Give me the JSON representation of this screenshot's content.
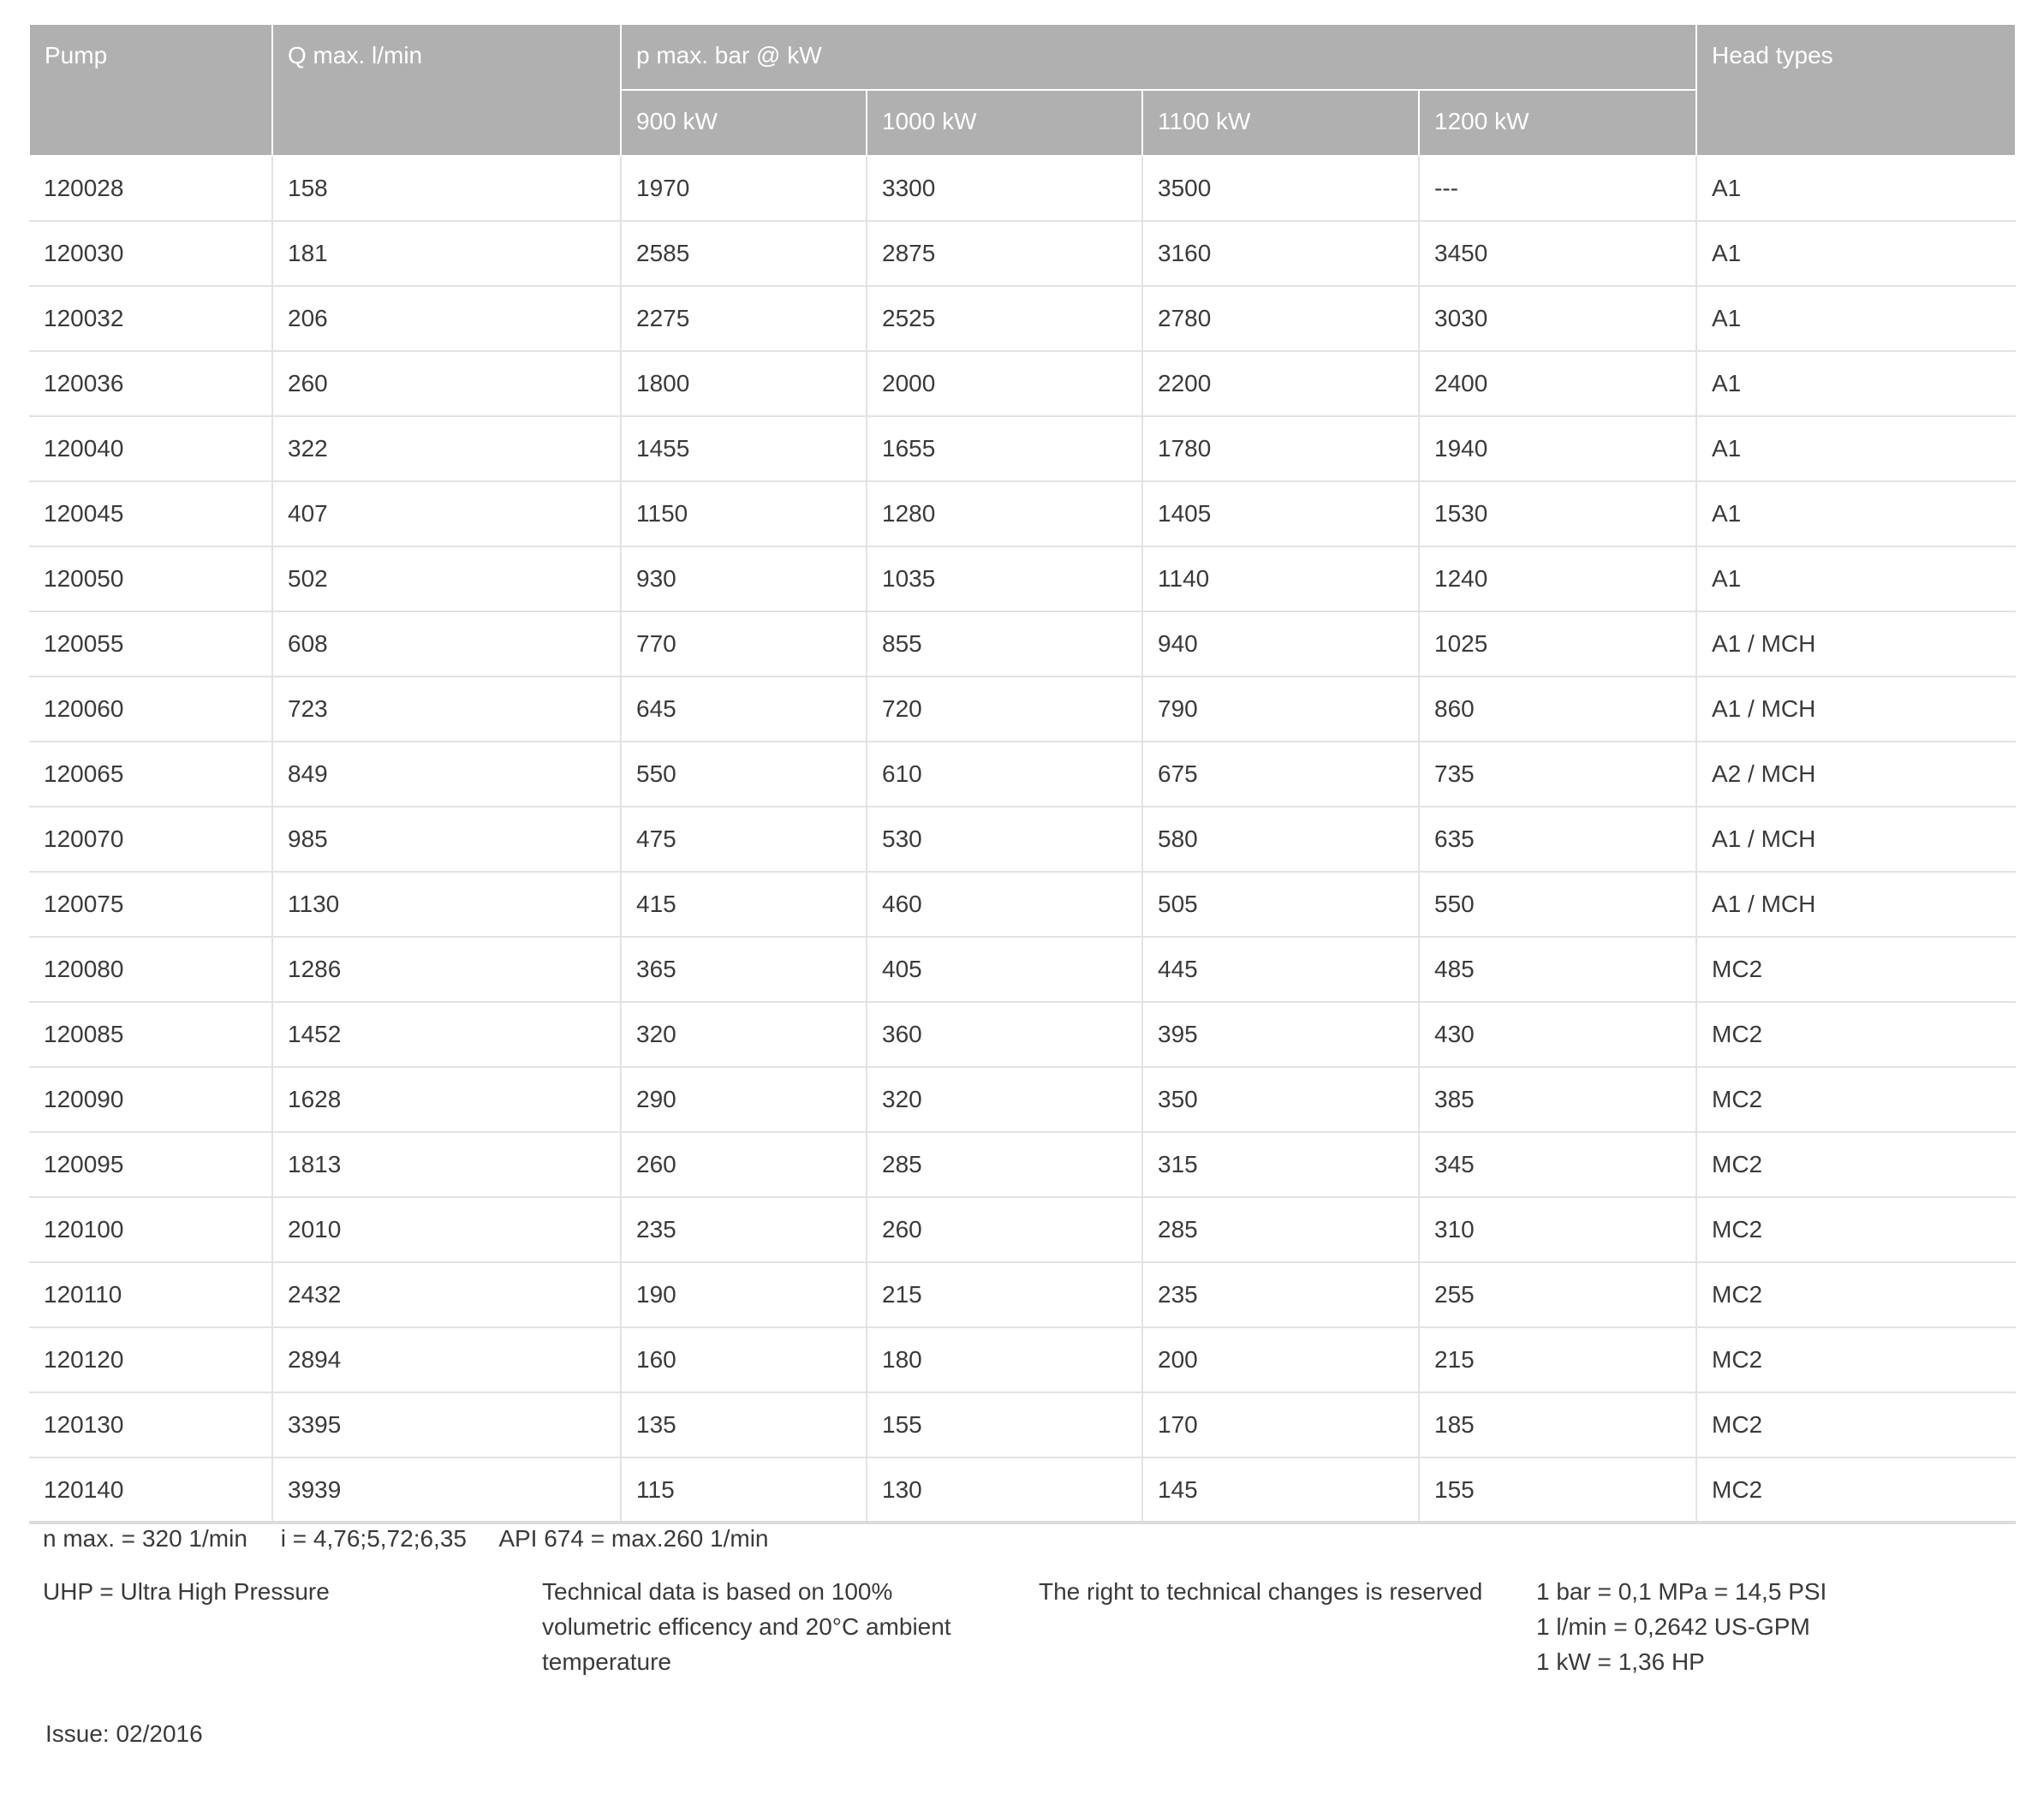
{
  "table": {
    "headers": {
      "pump": "Pump",
      "q_max": "Q max. l/min",
      "p_max": "p max. bar @ kW",
      "head_types": "Head types",
      "sub": [
        "900 kW",
        "1000 kW",
        "1100 kW",
        "1200 kW"
      ]
    },
    "rows": [
      [
        "120028",
        "158",
        "1970",
        "3300",
        "3500",
        "---",
        "A1"
      ],
      [
        "120030",
        "181",
        "2585",
        "2875",
        "3160",
        "3450",
        "A1"
      ],
      [
        "120032",
        "206",
        "2275",
        "2525",
        "2780",
        "3030",
        "A1"
      ],
      [
        "120036",
        "260",
        "1800",
        "2000",
        "2200",
        "2400",
        "A1"
      ],
      [
        "120040",
        "322",
        "1455",
        "1655",
        "1780",
        "1940",
        "A1"
      ],
      [
        "120045",
        "407",
        "1150",
        "1280",
        "1405",
        "1530",
        "A1"
      ],
      [
        "120050",
        "502",
        "930",
        "1035",
        "1140",
        "1240",
        "A1"
      ],
      [
        "120055",
        "608",
        "770",
        "855",
        "940",
        "1025",
        "A1 / MCH"
      ],
      [
        "120060",
        "723",
        "645",
        "720",
        "790",
        "860",
        "A1 / MCH"
      ],
      [
        "120065",
        "849",
        "550",
        "610",
        "675",
        "735",
        "A2 / MCH"
      ],
      [
        "120070",
        "985",
        "475",
        "530",
        "580",
        "635",
        "A1 / MCH"
      ],
      [
        "120075",
        "1130",
        "415",
        "460",
        "505",
        "550",
        "A1 / MCH"
      ],
      [
        "120080",
        "1286",
        "365",
        "405",
        "445",
        "485",
        "MC2"
      ],
      [
        "120085",
        "1452",
        "320",
        "360",
        "395",
        "430",
        "MC2"
      ],
      [
        "120090",
        "1628",
        "290",
        "320",
        "350",
        "385",
        "MC2"
      ],
      [
        "120095",
        "1813",
        "260",
        "285",
        "315",
        "345",
        "MC2"
      ],
      [
        "120100",
        "2010",
        "235",
        "260",
        "285",
        "310",
        "MC2"
      ],
      [
        "120110",
        "2432",
        "190",
        "215",
        "235",
        "255",
        "MC2"
      ],
      [
        "120120",
        "2894",
        "160",
        "180",
        "200",
        "215",
        "MC2"
      ],
      [
        "120130",
        "3395",
        "135",
        "155",
        "170",
        "185",
        "MC2"
      ],
      [
        "120140",
        "3939",
        "115",
        "130",
        "145",
        "155",
        "MC2"
      ]
    ]
  },
  "footer": {
    "specs_line": "n max. = 320 1/min     i = 4,76;5,72;6,35     API 674 = max.260 1/min",
    "uhp": "UHP = Ultra High Pressure",
    "technical_data": [
      "Technical data is based on 100%",
      "volumetric efficency and 20°C ambient",
      "temperature"
    ],
    "rights": "The right to technical changes is reserved",
    "conversions": [
      "1 bar = 0,1 MPa = 14,5 PSI",
      "1 l/min = 0,2642 US-GPM",
      "1 kW = 1,36 HP"
    ],
    "issue": "Issue: 02/2016"
  }
}
